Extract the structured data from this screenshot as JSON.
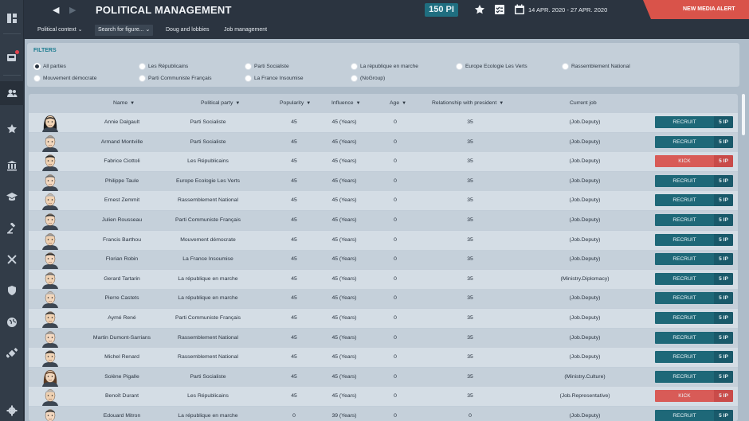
{
  "header": {
    "title": "POLITICAL MANAGEMENT",
    "pi_balance": "150 PI",
    "date_range": "14 APR. 2020 - 27 APR. 2020",
    "alert": "NEW MEDIA ALERT",
    "alert_color": "#d9534a"
  },
  "subnav": {
    "items": [
      "Political context",
      "Search for figure...",
      "Doug and lobbies",
      "Job management"
    ]
  },
  "sidebar": {
    "icons": [
      "dashboard-icon",
      "news-icon",
      "people-icon",
      "star-icon",
      "institution-icon",
      "education-icon",
      "justice-icon",
      "tools-icon",
      "shield-icon",
      "globe-icon",
      "satellite-icon",
      "settings-icon"
    ]
  },
  "filters": {
    "title": "FILTERS",
    "options": [
      {
        "label": "All parties",
        "selected": true
      },
      {
        "label": "Les Républicains",
        "selected": false
      },
      {
        "label": "Parti Socialiste",
        "selected": false
      },
      {
        "label": "La république en marche",
        "selected": false
      },
      {
        "label": "Europe Ecologie Les Verts",
        "selected": false
      },
      {
        "label": "Rassemblement National",
        "selected": false
      },
      {
        "label": "Mouvement démocrate",
        "selected": false
      },
      {
        "label": "Parti Communiste Français",
        "selected": false
      },
      {
        "label": "La France Insoumise",
        "selected": false
      },
      {
        "label": "(NoGroup)",
        "selected": false
      }
    ]
  },
  "table": {
    "columns": [
      "Name",
      "Political party",
      "Popularity",
      "Influence",
      "Age",
      "Relationship with president",
      "Current job"
    ],
    "rows": [
      {
        "name": "Annie Dalgault",
        "party": "Parti Socialiste",
        "popularity": "45",
        "influence": "45 (Years)",
        "age": "0",
        "relationship": "35",
        "job": "(Job.Deputy)",
        "action": "RECRUIT",
        "cost": "5 IP"
      },
      {
        "name": "Armand Montville",
        "party": "Parti Socialiste",
        "popularity": "45",
        "influence": "45 (Years)",
        "age": "0",
        "relationship": "35",
        "job": "(Job.Deputy)",
        "action": "RECRUIT",
        "cost": "5 IP"
      },
      {
        "name": "Fabrice Ciottoli",
        "party": "Les Républicains",
        "popularity": "45",
        "influence": "45 (Years)",
        "age": "0",
        "relationship": "35",
        "job": "(Job.Deputy)",
        "action": "KICK",
        "cost": "5 IP"
      },
      {
        "name": "Philippe Taule",
        "party": "Europe Ecologie Les Verts",
        "popularity": "45",
        "influence": "45 (Years)",
        "age": "0",
        "relationship": "35",
        "job": "(Job.Deputy)",
        "action": "RECRUIT",
        "cost": "5 IP"
      },
      {
        "name": "Ernest Zemmit",
        "party": "Rassemblement National",
        "popularity": "45",
        "influence": "45 (Years)",
        "age": "0",
        "relationship": "35",
        "job": "(Job.Deputy)",
        "action": "RECRUIT",
        "cost": "5 IP"
      },
      {
        "name": "Julien Rousseau",
        "party": "Parti Communiste Français",
        "popularity": "45",
        "influence": "45 (Years)",
        "age": "0",
        "relationship": "35",
        "job": "(Job.Deputy)",
        "action": "RECRUIT",
        "cost": "5 IP"
      },
      {
        "name": "Francis Barthou",
        "party": "Mouvement démocrate",
        "popularity": "45",
        "influence": "45 (Years)",
        "age": "0",
        "relationship": "35",
        "job": "(Job.Deputy)",
        "action": "RECRUIT",
        "cost": "5 IP"
      },
      {
        "name": "Florian Robin",
        "party": "La France Insoumise",
        "popularity": "45",
        "influence": "45 (Years)",
        "age": "0",
        "relationship": "35",
        "job": "(Job.Deputy)",
        "action": "RECRUIT",
        "cost": "5 IP"
      },
      {
        "name": "Gerard Tartarin",
        "party": "La république en marche",
        "popularity": "45",
        "influence": "45 (Years)",
        "age": "0",
        "relationship": "35",
        "job": "(Ministry.Diplomacy)",
        "action": "RECRUIT",
        "cost": "5 IP"
      },
      {
        "name": "Pierre Castets",
        "party": "La république en marche",
        "popularity": "45",
        "influence": "45 (Years)",
        "age": "0",
        "relationship": "35",
        "job": "(Job.Deputy)",
        "action": "RECRUIT",
        "cost": "5 IP"
      },
      {
        "name": "Aymé René",
        "party": "Parti Communiste Français",
        "popularity": "45",
        "influence": "45 (Years)",
        "age": "0",
        "relationship": "35",
        "job": "(Job.Deputy)",
        "action": "RECRUIT",
        "cost": "5 IP"
      },
      {
        "name": "Martin Dumont-Sarrians",
        "party": "Rassemblement National",
        "popularity": "45",
        "influence": "45 (Years)",
        "age": "0",
        "relationship": "35",
        "job": "(Job.Deputy)",
        "action": "RECRUIT",
        "cost": "5 IP"
      },
      {
        "name": "Michel Renard",
        "party": "Rassemblement National",
        "popularity": "45",
        "influence": "45 (Years)",
        "age": "0",
        "relationship": "35",
        "job": "(Job.Deputy)",
        "action": "RECRUIT",
        "cost": "5 IP"
      },
      {
        "name": "Solène Pigalle",
        "party": "Parti Socialiste",
        "popularity": "45",
        "influence": "45 (Years)",
        "age": "0",
        "relationship": "35",
        "job": "(Ministry.Culture)",
        "action": "RECRUIT",
        "cost": "5 IP"
      },
      {
        "name": "Benoît Durant",
        "party": "Les Républicains",
        "popularity": "45",
        "influence": "45 (Years)",
        "age": "0",
        "relationship": "35",
        "job": "(Job.Representative)",
        "action": "KICK",
        "cost": "5 IP"
      },
      {
        "name": "Edouard Mitron",
        "party": "La république en marche",
        "popularity": "0",
        "influence": "39 (Years)",
        "age": "0",
        "relationship": "0",
        "job": "(Job.Deputy)",
        "action": "RECRUIT",
        "cost": "5 IP"
      }
    ]
  }
}
